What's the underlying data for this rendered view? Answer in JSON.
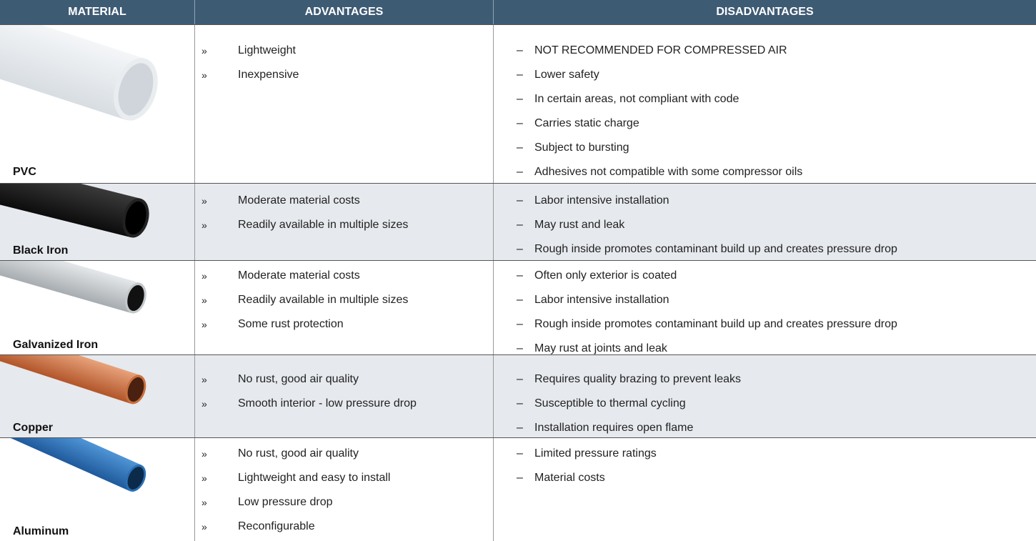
{
  "header": {
    "columns": [
      "MATERIAL",
      "ADVANTAGES",
      "DISADVANTAGES"
    ]
  },
  "rows": [
    {
      "material": "PVC",
      "advantages": [
        "Lightweight",
        "Inexpensive"
      ],
      "disadvantages": [
        "NOT RECOMMENDED FOR COMPRESSED AIR",
        "Lower safety",
        "In certain areas, not compliant with code",
        "Carries static charge",
        "Subject to bursting",
        "Adhesives not compatible with some compressor oils"
      ]
    },
    {
      "material": "Black Iron",
      "advantages": [
        "Moderate material costs",
        "Readily available in multiple sizes"
      ],
      "disadvantages": [
        "Labor intensive installation",
        "May rust and leak",
        "Rough inside promotes contaminant build up and creates pressure drop"
      ]
    },
    {
      "material": "Galvanized Iron",
      "advantages": [
        "Moderate material costs",
        "Readily available in multiple sizes",
        "Some rust protection"
      ],
      "disadvantages": [
        "Often only exterior is coated",
        "Labor intensive installation",
        "Rough inside promotes contaminant build up and creates pressure drop",
        "May rust at joints and leak"
      ]
    },
    {
      "material": "Copper",
      "advantages": [
        "No rust, good air quality",
        "Smooth interior - low pressure drop"
      ],
      "disadvantages": [
        "Requires quality brazing to prevent leaks",
        "Susceptible to thermal cycling",
        "Installation requires open flame"
      ]
    },
    {
      "material": "Aluminum",
      "advantages": [
        "No rust, good air quality",
        "Lightweight and easy to install",
        "Low pressure drop",
        "Reconfigurable"
      ],
      "disadvantages": [
        "Limited pressure ratings",
        "Material costs"
      ]
    }
  ]
}
